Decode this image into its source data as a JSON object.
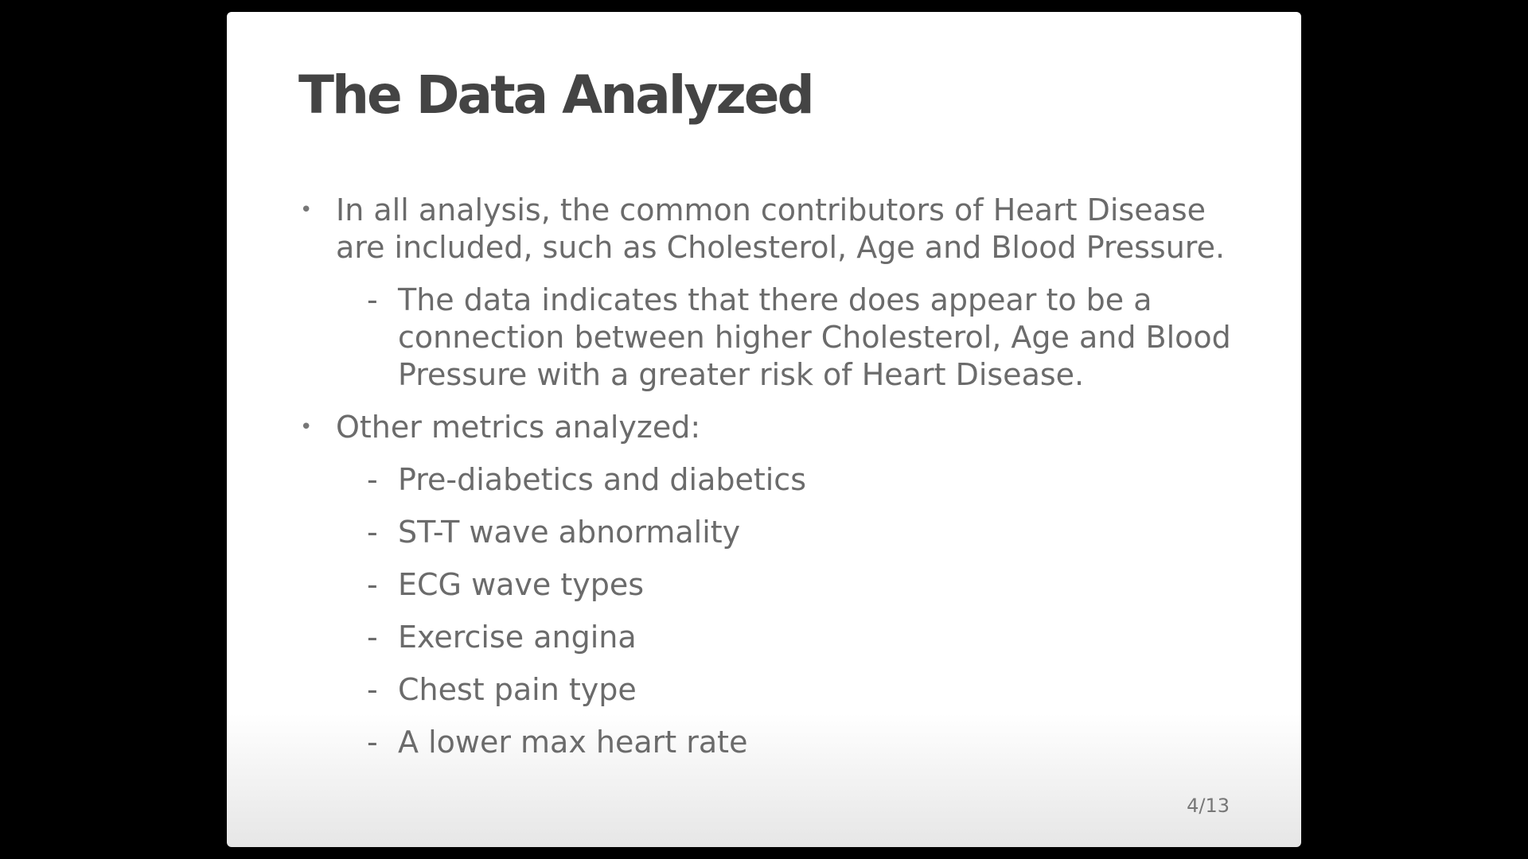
{
  "slide": {
    "title": "The Data Analyzed",
    "bullets": [
      {
        "text": "In all analysis, the common contributors of Heart Disease are included, such as Cholesterol, Age and Blood Pressure.",
        "subitems": [
          "The data indicates that there does appear to be a connection between higher Cholesterol, Age and Blood Pressure with a greater risk of Heart Disease."
        ]
      },
      {
        "text": "Other metrics analyzed:",
        "subitems": [
          "Pre-diabetics and diabetics",
          "ST-T wave abnormality",
          "ECG wave types",
          "Exercise angina",
          "Chest pain type",
          "A lower max heart rate"
        ]
      }
    ],
    "bullet_marker": "•",
    "sub_marker": "-",
    "page_number": "4/13"
  }
}
